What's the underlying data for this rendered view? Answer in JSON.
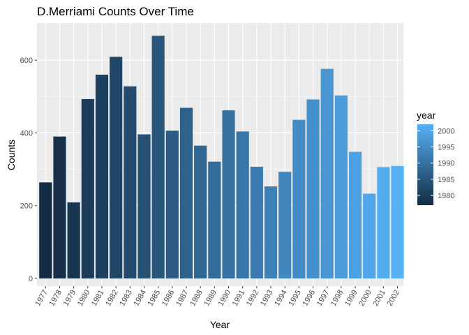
{
  "chart_data": {
    "type": "bar",
    "title": "D.Merriami Counts Over Time",
    "xlabel": "Year",
    "ylabel": "Counts",
    "categories": [
      "1977",
      "1978",
      "1979",
      "1980",
      "1981",
      "1982",
      "1983",
      "1984",
      "1985",
      "1986",
      "1987",
      "1988",
      "1989",
      "1990",
      "1991",
      "1992",
      "1993",
      "1994",
      "1995",
      "1996",
      "1997",
      "1998",
      "1999",
      "2000",
      "2001",
      "2002"
    ],
    "values": [
      264,
      390,
      209,
      493,
      560,
      609,
      528,
      396,
      667,
      406,
      469,
      365,
      321,
      462,
      404,
      307,
      253,
      293,
      436,
      492,
      576,
      503,
      348,
      233,
      306,
      309
    ],
    "ylim": [
      0,
      700
    ],
    "yticks": [
      0,
      200,
      400,
      600
    ],
    "grid": true,
    "legend": {
      "title": "year",
      "position": "right",
      "breaks": [
        "2000",
        "1995",
        "1990",
        "1985",
        "1980"
      ],
      "range": [
        1977,
        2002
      ],
      "color_low": "#132B43",
      "color_high": "#56B1F7"
    },
    "panel_background": "#EBEBEB",
    "grid_color": "#FFFFFF"
  }
}
